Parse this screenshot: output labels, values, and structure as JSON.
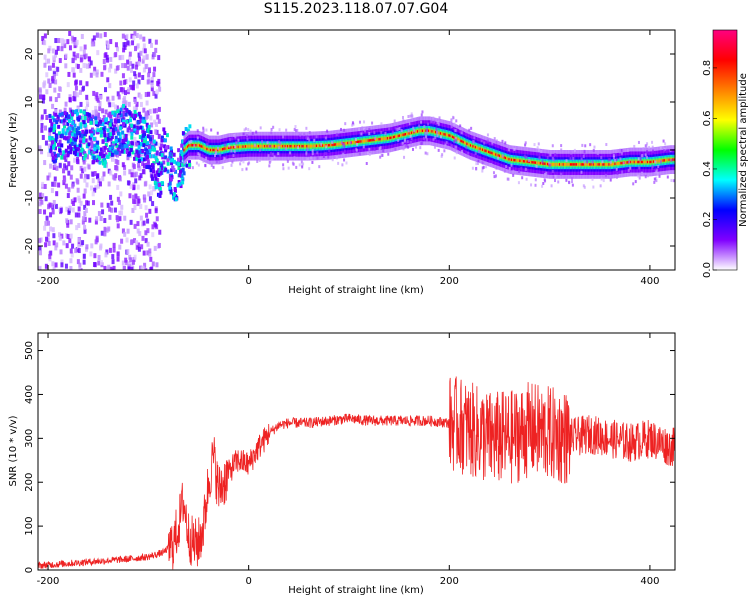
{
  "title": "S115.2023.118.07.07.G04",
  "chart_data": [
    {
      "type": "heatmap",
      "xlabel": "Height of straight line (km)",
      "ylabel": "Frequency (Hz)",
      "xlim": [
        -210,
        425
      ],
      "ylim": [
        -25,
        25
      ],
      "x_ticks": [
        -200,
        0,
        200,
        400
      ],
      "y_ticks": [
        -20,
        -10,
        0,
        10,
        20
      ],
      "colorbar": {
        "label": "Normalized spectral amplitude",
        "range": [
          0,
          0.95
        ],
        "ticks": [
          0.0,
          0.2,
          0.4,
          0.6,
          0.8
        ],
        "tick_labels": [
          "0.0",
          "0.2",
          "0.4",
          "0.6",
          "0.8"
        ],
        "colors": [
          "#ffffff",
          "#8000ff",
          "#0000ff",
          "#00ffff",
          "#00ff00",
          "#ffff00",
          "#ff8000",
          "#ff0000",
          "#ff0080"
        ]
      },
      "ridge_trace": {
        "x": [
          -190,
          -175,
          -160,
          -145,
          -130,
          -120,
          -110,
          -100,
          -95,
          -90,
          -85,
          -80,
          -75,
          -70,
          -65,
          -60,
          -50,
          -40,
          -30,
          -20,
          0,
          20,
          40,
          60,
          80,
          100,
          120,
          140,
          160,
          170,
          180,
          190,
          200,
          210,
          220,
          240,
          260,
          280,
          300,
          320,
          340,
          360,
          380,
          400,
          420
        ],
        "y": [
          3,
          4,
          3,
          2,
          5,
          4,
          3,
          1,
          -2,
          -5,
          1,
          -3,
          -6,
          -3,
          0,
          1,
          1,
          0,
          0,
          0.5,
          0.8,
          0.8,
          0.8,
          0.8,
          1,
          1.5,
          2,
          2.5,
          3.5,
          4,
          4,
          3.5,
          3,
          2,
          1,
          -0.5,
          -2,
          -2.5,
          -3,
          -3,
          -3,
          -3,
          -2.5,
          -2.5,
          -2
        ]
      }
    },
    {
      "type": "line",
      "xlabel": "Height of straight line (km)",
      "ylabel": "SNR (10 * v/v)",
      "xlim": [
        -210,
        425
      ],
      "ylim": [
        0,
        540
      ],
      "x_ticks": [
        -200,
        0,
        200,
        400
      ],
      "y_ticks": [
        0,
        100,
        200,
        300,
        400,
        500
      ],
      "color": "#ee2222",
      "series": [
        {
          "x": [
            -210,
            -180,
            -150,
            -120,
            -100,
            -85,
            -75,
            -70,
            -65,
            -60,
            -55,
            -50,
            -45,
            -40,
            -35,
            -30,
            -25,
            -20,
            -15,
            -10,
            0,
            10,
            20,
            30,
            40,
            60,
            80,
            100,
            120,
            150,
            180,
            200,
            210,
            220,
            230,
            240,
            250,
            260,
            270,
            280,
            300,
            320,
            340,
            360,
            380,
            400,
            420
          ],
          "y": [
            10,
            15,
            20,
            25,
            30,
            40,
            60,
            100,
            160,
            80,
            60,
            60,
            100,
            200,
            260,
            180,
            200,
            220,
            240,
            250,
            240,
            280,
            310,
            330,
            335,
            335,
            340,
            345,
            340,
            340,
            340,
            335,
            330,
            320,
            310,
            300,
            300,
            300,
            310,
            320,
            310,
            300,
            310,
            300,
            290,
            300,
            280
          ]
        }
      ]
    }
  ]
}
